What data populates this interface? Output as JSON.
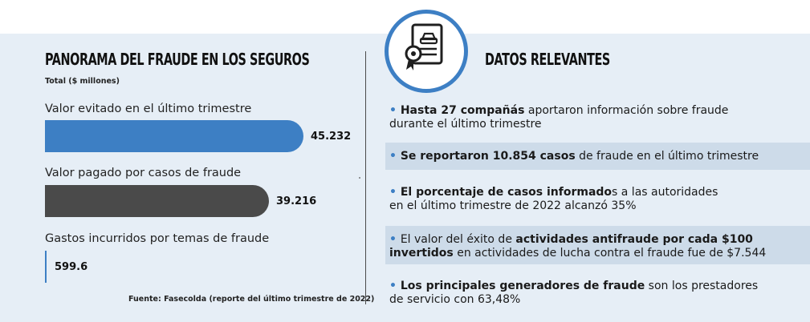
{
  "chart_data": {
    "type": "bar",
    "orientation": "horizontal",
    "title": "PANORAMA DEL FRAUDE EN LOS SEGUROS",
    "subtitle": "Total ($ millones)",
    "categories": [
      "Valor evitado en el último trimestre",
      "Valor pagado por casos de fraude",
      "Gastos incurridos por temas de fraude"
    ],
    "values": [
      45232,
      39216,
      599.6
    ],
    "value_labels": [
      "45.232",
      "39.216",
      "599.6"
    ],
    "colors": [
      "#3d7fc4",
      "#4a4a4a",
      "#3d7fc4"
    ],
    "xlim": [
      0,
      45232
    ],
    "grid": false,
    "source": "Fuente: Fasecolda (reporte del último trimestre de 2022)"
  },
  "facts_panel": {
    "title": "DATOS RELEVANTES",
    "badge_icon": "document-car-certificate-icon",
    "items": [
      {
        "parts": [
          {
            "text": "Hasta 27 compañás",
            "bold": true
          },
          {
            "text": " aportaron información sobre fraude durante el último trimestre",
            "bold": false
          }
        ]
      },
      {
        "parts": [
          {
            "text": "Se reportaron 10.854 casos",
            "bold": true
          },
          {
            "text": " de fraude en el último trimestre",
            "bold": false
          }
        ]
      },
      {
        "parts": [
          {
            "text": "El porcentaje de casos informado",
            "bold": true
          },
          {
            "text": "s a las autoridades en el último trimestre de 2022 alcanzó 35%",
            "bold": false
          }
        ]
      },
      {
        "parts": [
          {
            "text": "El valor del éxito de ",
            "bold": false
          },
          {
            "text": "actividades antifraude por cada $100 invertidos",
            "bold": true
          },
          {
            "text": " en actividades de lucha contra el fraude fue de $7.544",
            "bold": false
          }
        ]
      },
      {
        "parts": [
          {
            "text": "Los principales generadores de fraude",
            "bold": true
          },
          {
            "text": " son los prestadores de servicio con 63,48%",
            "bold": false
          }
        ]
      }
    ]
  },
  "colors": {
    "panel_background": "#e6eef6",
    "fact_band": "#cddbe9",
    "accent_blue": "#3d7fc4",
    "dark_gray": "#4a4a4a"
  }
}
